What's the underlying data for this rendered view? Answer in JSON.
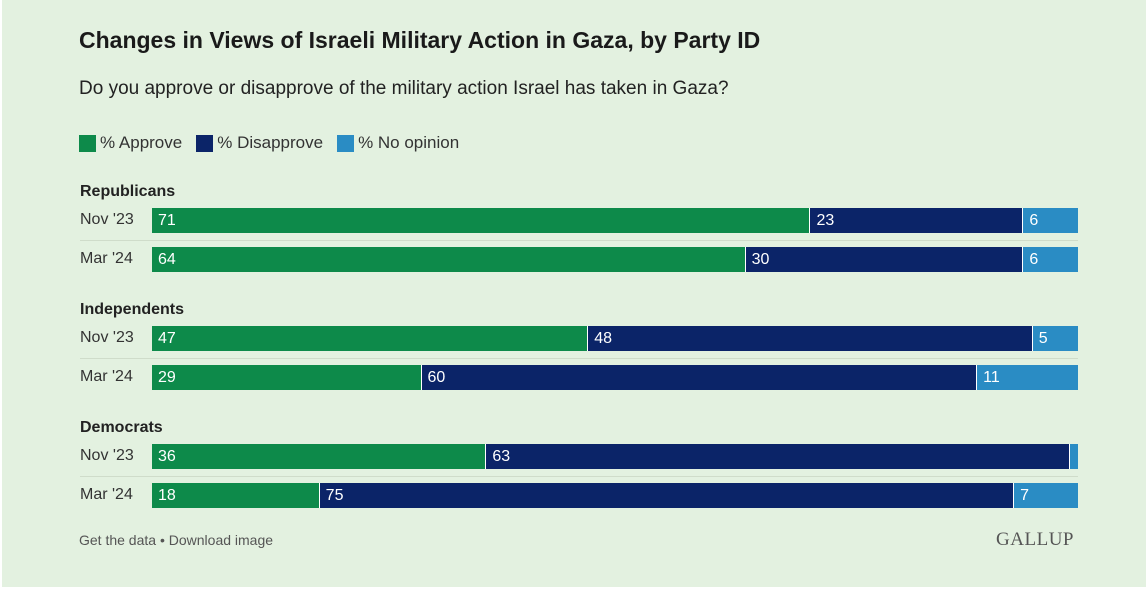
{
  "title": "Changes in Views of Israeli Military Action in Gaza, by Party ID",
  "subtitle": "Do you approve or disapprove of the military action Israel has taken in Gaza?",
  "legend": [
    {
      "label": "% Approve",
      "color": "#0d8a4a"
    },
    {
      "label": "% Disappove",
      "color": "#0b2468"
    },
    {
      "label": "% No opinion",
      "color": "#2a8cc4"
    }
  ],
  "chart_data": {
    "type": "bar",
    "stacked": true,
    "orientation": "horizontal",
    "title": "Changes in Views of Israeli Military Action in Gaza, by Party ID",
    "subtitle": "Do you approve or disapprove of the military action Israel has taken in Gaza?",
    "series_names": [
      "% Approve",
      "% Disapprove",
      "% No opinion"
    ],
    "groups": [
      {
        "name": "Republicans",
        "rows": [
          {
            "label": "Nov '23",
            "values": [
              71,
              23,
              6
            ],
            "labels": [
              "71",
              "23",
              "6"
            ]
          },
          {
            "label": "Mar '24",
            "values": [
              64,
              30,
              6
            ],
            "labels": [
              "64",
              "30",
              "6"
            ]
          }
        ]
      },
      {
        "name": "Independents",
        "rows": [
          {
            "label": "Nov '23",
            "values": [
              47,
              48,
              5
            ],
            "labels": [
              "47",
              "48",
              "5"
            ]
          },
          {
            "label": "Mar '24",
            "values": [
              29,
              60,
              11
            ],
            "labels": [
              "29",
              "60",
              "11"
            ]
          }
        ]
      },
      {
        "name": "Democrats",
        "rows": [
          {
            "label": "Nov '23",
            "values": [
              36,
              63,
              1
            ],
            "labels": [
              "36",
              "63",
              ""
            ]
          },
          {
            "label": "Mar '24",
            "values": [
              18,
              75,
              7
            ],
            "labels": [
              "18",
              "75",
              "7"
            ]
          }
        ]
      }
    ],
    "xlim": [
      0,
      100
    ]
  },
  "footer": {
    "get_data": "Get the data",
    "separator": " • ",
    "download": "Download image",
    "brand": "GALLUP"
  }
}
